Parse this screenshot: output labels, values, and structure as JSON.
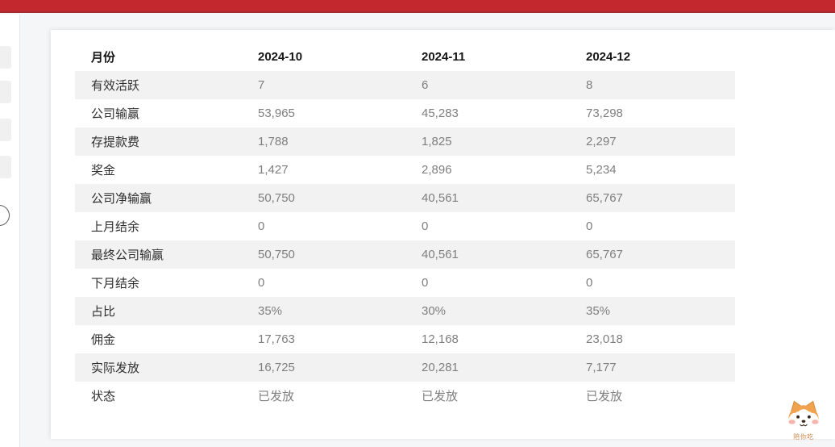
{
  "topbar": {
    "color": "#c2282d"
  },
  "sidebar": {
    "skeleton_items": 4,
    "toggle_icon": "collapse-toggle-circle"
  },
  "table": {
    "columns": [
      "月份",
      "2024-10",
      "2024-11",
      "2024-12"
    ],
    "rows": [
      {
        "label": "有效活跃",
        "values": [
          "7",
          "6",
          "8"
        ]
      },
      {
        "label": "公司输赢",
        "values": [
          "53,965",
          "45,283",
          "73,298"
        ]
      },
      {
        "label": "存提款费",
        "values": [
          "1,788",
          "1,825",
          "2,297"
        ]
      },
      {
        "label": "奖金",
        "values": [
          "1,427",
          "2,896",
          "5,234"
        ]
      },
      {
        "label": "公司净输赢",
        "values": [
          "50,750",
          "40,561",
          "65,767"
        ]
      },
      {
        "label": "上月结余",
        "values": [
          "0",
          "0",
          "0"
        ]
      },
      {
        "label": "最终公司输赢",
        "values": [
          "50,750",
          "40,561",
          "65,767"
        ]
      },
      {
        "label": "下月结余",
        "values": [
          "0",
          "0",
          "0"
        ]
      },
      {
        "label": "占比",
        "values": [
          "35%",
          "30%",
          "35%"
        ]
      },
      {
        "label": "佣金",
        "values": [
          "17,763",
          "12,168",
          "23,018"
        ]
      },
      {
        "label": "实际发放",
        "values": [
          "16,725",
          "20,281",
          "7,177"
        ]
      },
      {
        "label": "状态",
        "values": [
          "已发放",
          "已发放",
          "已发放"
        ]
      }
    ]
  },
  "mascot": {
    "label": "陪你吃",
    "label_color": "#d18b4f"
  },
  "colors": {
    "accent_red": "#c2282d",
    "page_background": "#f5f6f7",
    "stripe": "#f2f2f2",
    "label_text": "#2e2e2e",
    "value_text": "#7f7f7f"
  }
}
